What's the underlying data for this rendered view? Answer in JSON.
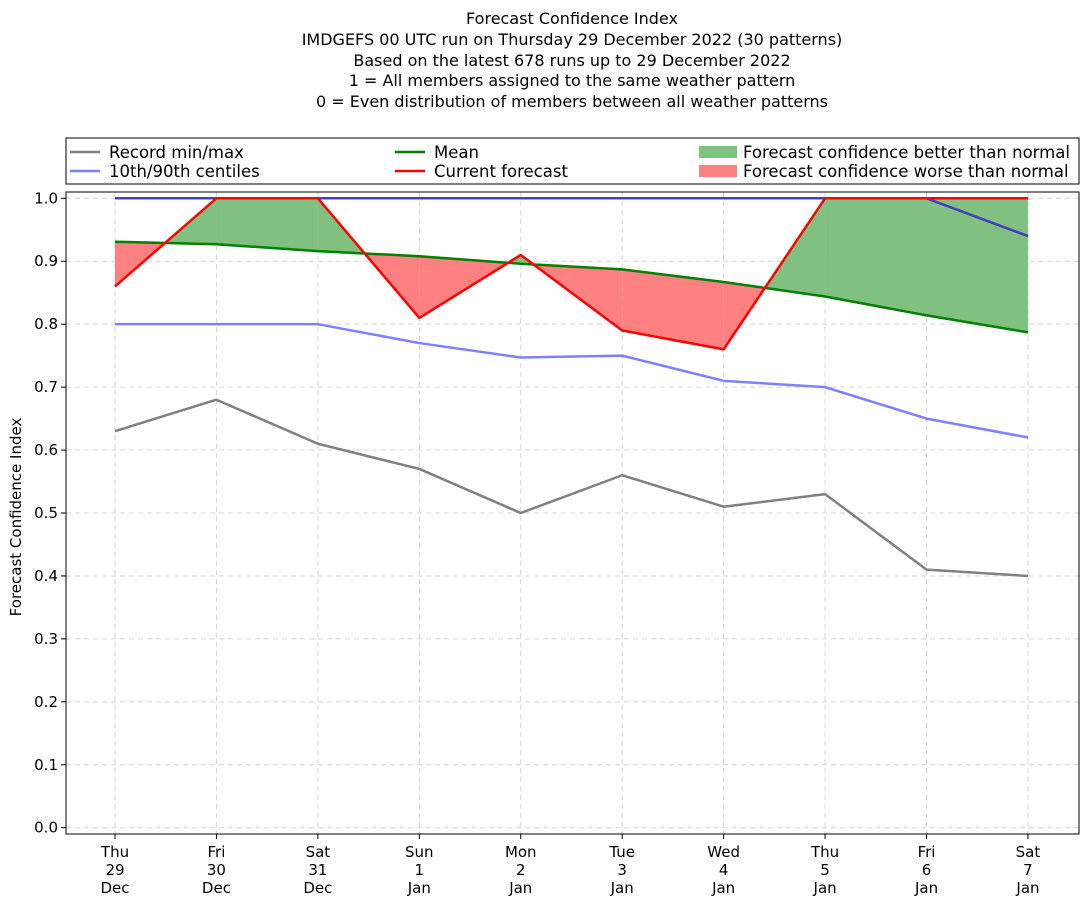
{
  "chart_data": {
    "type": "line",
    "title_lines": [
      "Forecast Confidence Index",
      "IMDGEFS 00 UTC run on Thursday 29 December 2022 (30 patterns)",
      "Based on the latest 678 runs up to 29 December 2022",
      "1 = All members assigned to the same weather pattern",
      "0 = Even distribution of members between all weather patterns"
    ],
    "ylabel": "Forecast Confidence Index",
    "xlabel": "",
    "ylim": [
      -0.01,
      1.01
    ],
    "yticks": [
      "0.0",
      "0.1",
      "0.2",
      "0.3",
      "0.4",
      "0.5",
      "0.6",
      "0.7",
      "0.8",
      "0.9",
      "1.0"
    ],
    "categories": [
      [
        "Thu",
        "29",
        "Dec"
      ],
      [
        "Fri",
        "30",
        "Dec"
      ],
      [
        "Sat",
        "31",
        "Dec"
      ],
      [
        "Sun",
        "1",
        "Jan"
      ],
      [
        "Mon",
        "2",
        "Jan"
      ],
      [
        "Tue",
        "3",
        "Jan"
      ],
      [
        "Wed",
        "4",
        "Jan"
      ],
      [
        "Thu",
        "5",
        "Jan"
      ],
      [
        "Fri",
        "6",
        "Jan"
      ],
      [
        "Sat",
        "7",
        "Jan"
      ]
    ],
    "grid": true,
    "series": [
      {
        "name": "Record max",
        "values": [
          1.0,
          1.0,
          1.0,
          1.0,
          1.0,
          1.0,
          1.0,
          1.0,
          1.0,
          1.0
        ]
      },
      {
        "name": "Record min",
        "values": [
          0.63,
          0.68,
          0.61,
          0.57,
          0.5,
          0.56,
          0.51,
          0.53,
          0.41,
          0.4
        ]
      },
      {
        "name": "90th centile",
        "values": [
          1.0,
          1.0,
          1.0,
          1.0,
          1.0,
          1.0,
          1.0,
          1.0,
          1.0,
          0.94
        ]
      },
      {
        "name": "10th centile",
        "values": [
          0.8,
          0.8,
          0.8,
          0.77,
          0.747,
          0.75,
          0.71,
          0.7,
          0.65,
          0.62
        ]
      },
      {
        "name": "Mean",
        "values": [
          0.931,
          0.927,
          0.916,
          0.908,
          0.896,
          0.887,
          0.867,
          0.844,
          0.814,
          0.787
        ]
      },
      {
        "name": "Current forecast",
        "values": [
          0.86,
          1.0,
          1.0,
          0.81,
          0.91,
          0.79,
          0.76,
          1.0,
          1.0,
          1.0
        ]
      }
    ],
    "legend": {
      "placement": "top",
      "entries": [
        {
          "label": "Record min/max",
          "kind": "line",
          "color": "#808080"
        },
        {
          "label": "10th/90th centiles",
          "kind": "line",
          "color": "#8080ff"
        },
        {
          "label": "Mean",
          "kind": "line",
          "color": "#008000"
        },
        {
          "label": "Current forecast",
          "kind": "line",
          "color": "#ff0000"
        },
        {
          "label": "Forecast confidence better than normal",
          "kind": "patch",
          "color": "#80c080"
        },
        {
          "label": "Forecast confidence worse than normal",
          "kind": "patch",
          "color": "#ff8080"
        }
      ]
    },
    "colors": {
      "record": "#808080",
      "centile": "#8080ff",
      "max_overlap": "#4040c0",
      "mean": "#008000",
      "current": "#ff0000",
      "better_fill": "#80c080",
      "worse_fill": "#ff8080",
      "grid": "#d3d3d3"
    }
  }
}
